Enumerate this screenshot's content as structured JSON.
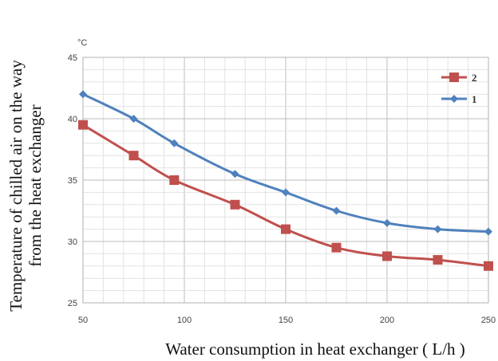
{
  "chart_data": {
    "type": "line",
    "xlabel": "Water consumption in heat exchanger ( L/h  )",
    "ylabel_line1": "Temperature of chilled air on the way",
    "ylabel_line2": "from the heat exchanger",
    "y_unit": "°C",
    "xlim": [
      50,
      250
    ],
    "ylim": [
      25,
      45
    ],
    "x_ticks": [
      "50",
      "100",
      "150",
      "200",
      "250"
    ],
    "y_ticks": [
      "25",
      "30",
      "35",
      "40",
      "45"
    ],
    "x_minor_step": 10,
    "y_minor_step": 1,
    "grid": true,
    "legend_position": "top-right",
    "series": [
      {
        "name": "2",
        "color": "#c0504d",
        "marker": "square",
        "x": [
          50,
          75,
          95,
          125,
          150,
          175,
          200,
          225,
          250
        ],
        "values": [
          39.5,
          37.0,
          35.0,
          33.0,
          31.0,
          29.5,
          28.8,
          28.5,
          28.0
        ]
      },
      {
        "name": "1",
        "color": "#4f81bd",
        "marker": "diamond",
        "x": [
          50,
          75,
          95,
          125,
          150,
          175,
          200,
          225,
          250
        ],
        "values": [
          42.0,
          40.0,
          38.0,
          35.5,
          34.0,
          32.5,
          31.5,
          31.0,
          30.8
        ]
      }
    ]
  }
}
